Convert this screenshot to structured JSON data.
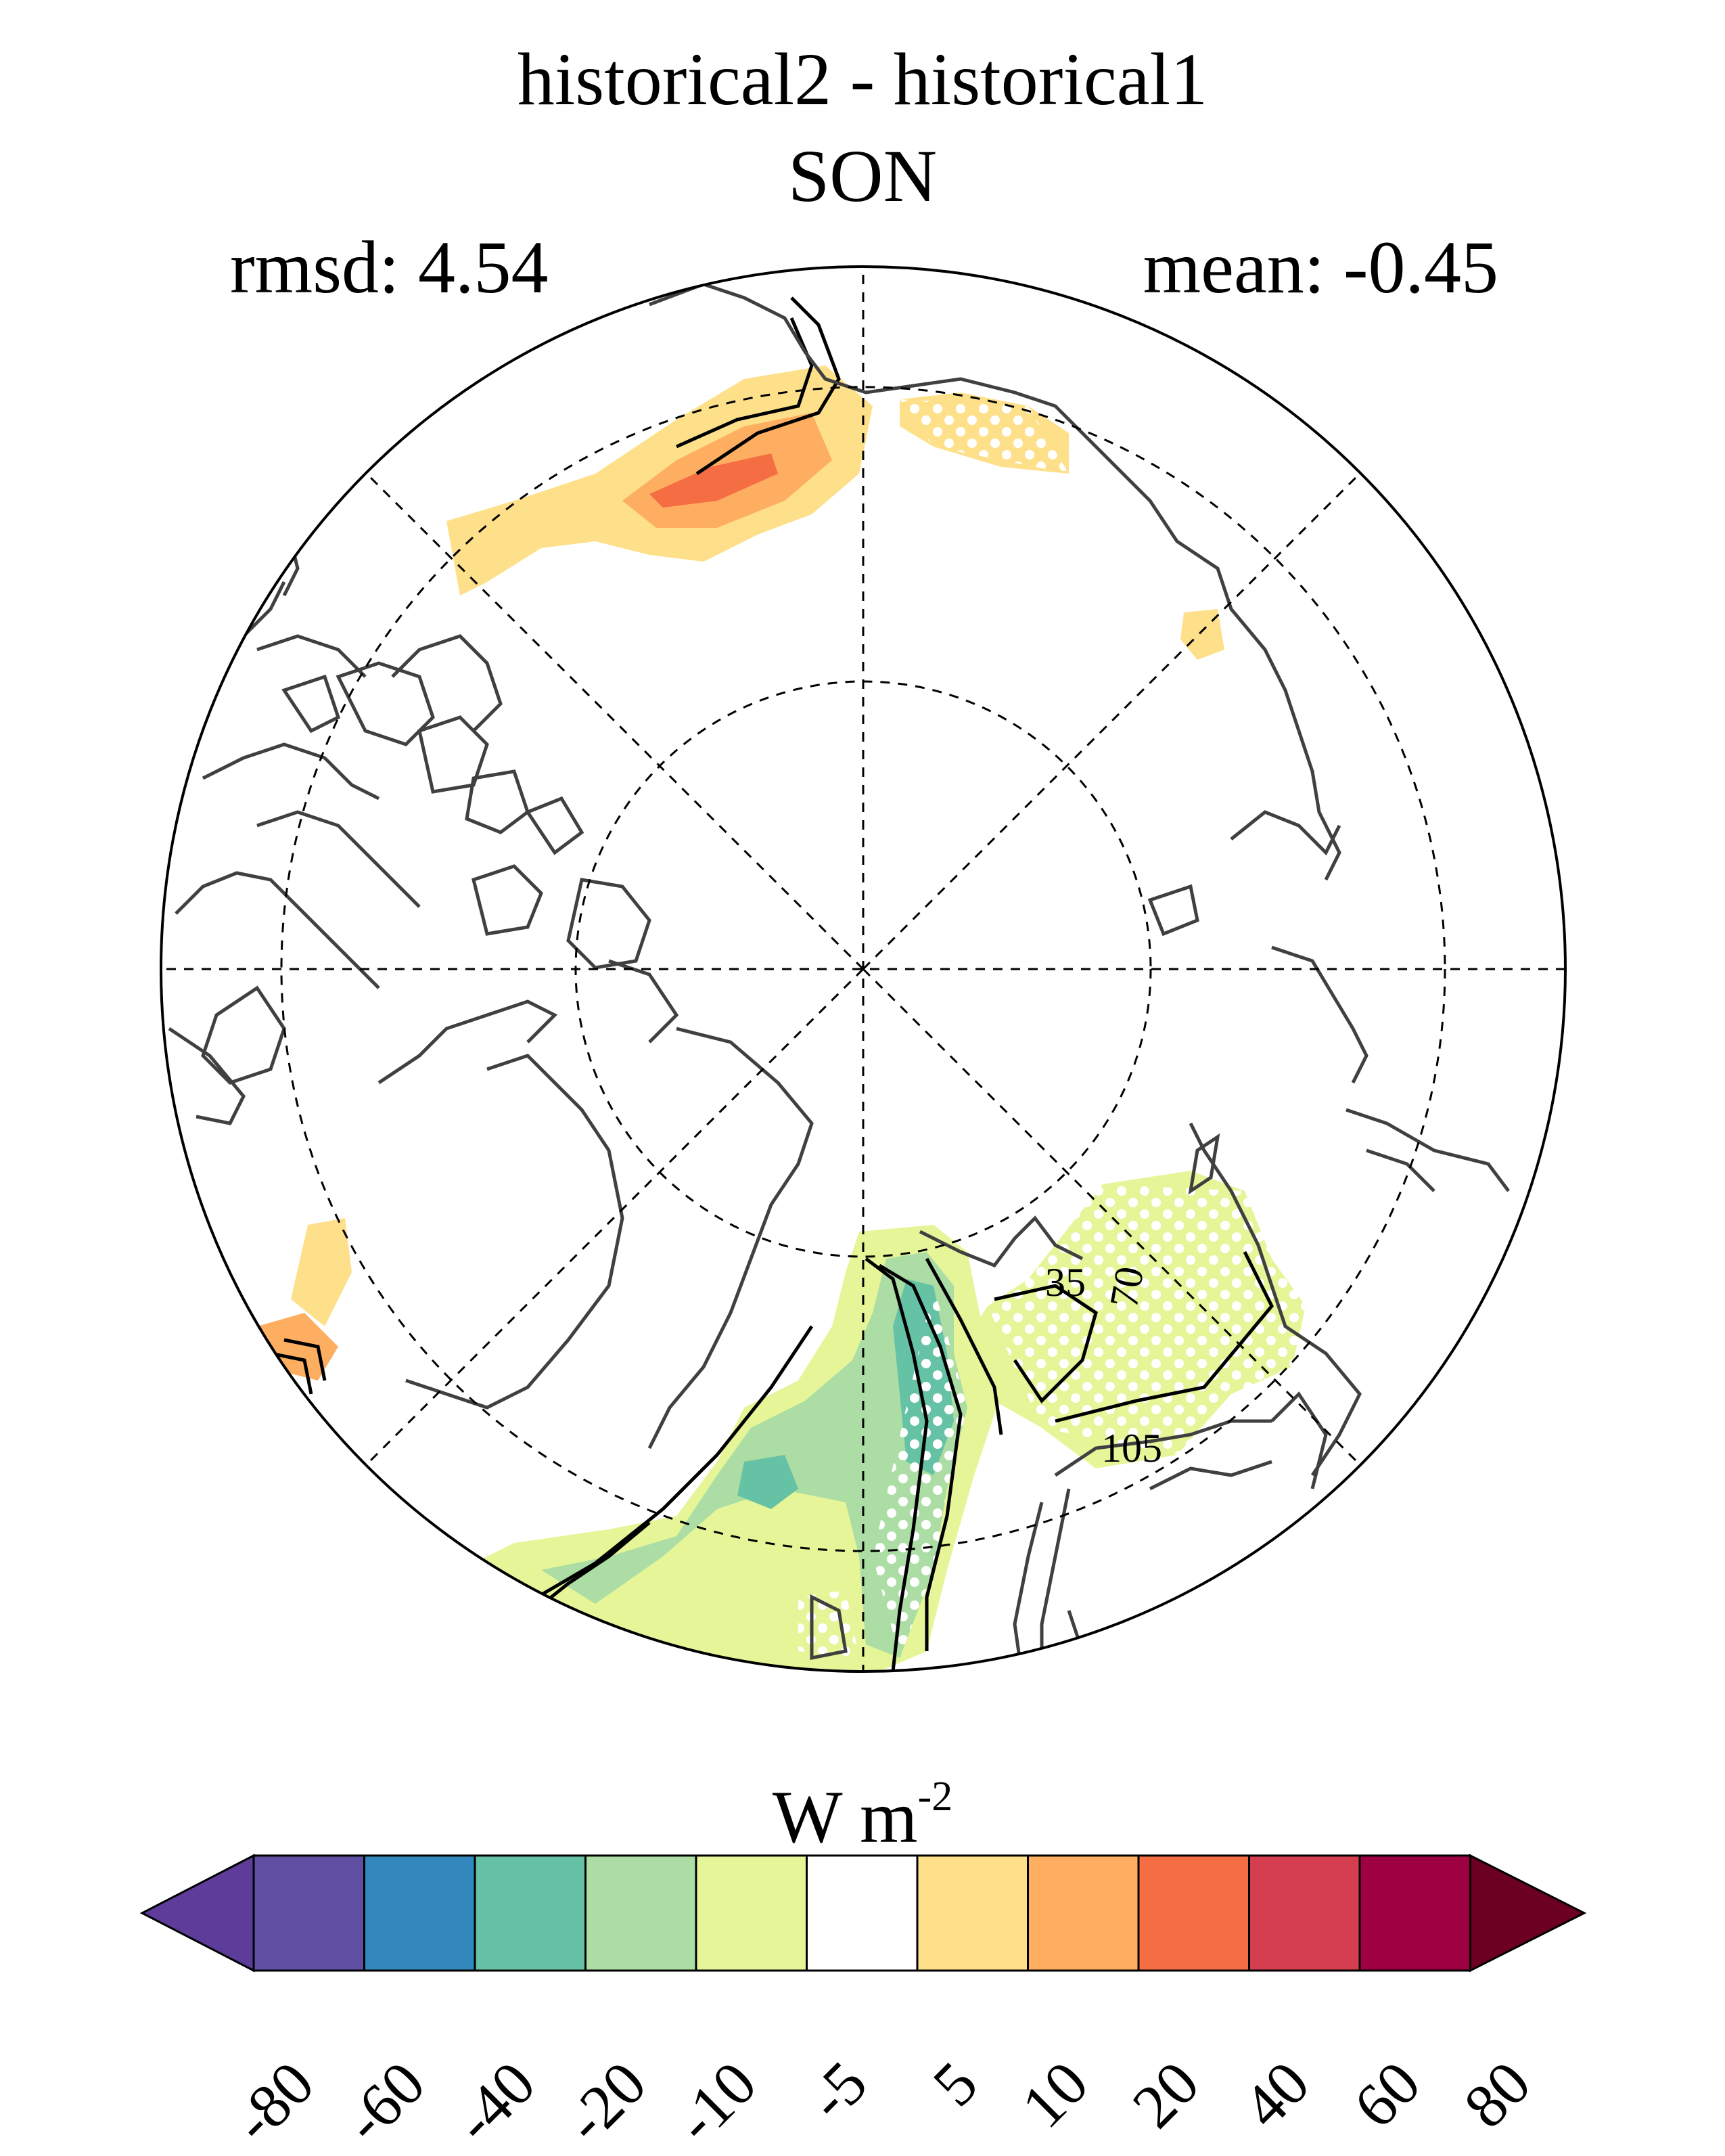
{
  "title_line1": "historical2 - historical1",
  "title_line2": "SON",
  "rmsd_text": "rmsd: 4.54",
  "mean_text": "mean: -0.45",
  "units": {
    "base": "W m",
    "exponent": "-2"
  },
  "contour_labels": [
    "35",
    "70",
    "105"
  ],
  "colorbar": {
    "levels": [
      "-80",
      "-60",
      "-40",
      "-20",
      "-10",
      "-5",
      "5",
      "10",
      "20",
      "40",
      "60",
      "80"
    ],
    "colors": [
      "#5e3c99",
      "#5e4fa2",
      "#3288bd",
      "#66c2a5",
      "#abdda4",
      "#e6f598",
      "#ffffff",
      "#fee08b",
      "#fdae61",
      "#f46d43",
      "#d53e4f",
      "#9e0142",
      "#6b0020"
    ]
  },
  "map": {
    "projection": "north-polar-stereographic",
    "fill_colors": {
      "light_orange": "#fee08b",
      "orange": "#fdae61",
      "red_orange": "#f46d43",
      "light_green": "#e6f598",
      "green": "#abdda4",
      "teal": "#66c2a5"
    }
  }
}
